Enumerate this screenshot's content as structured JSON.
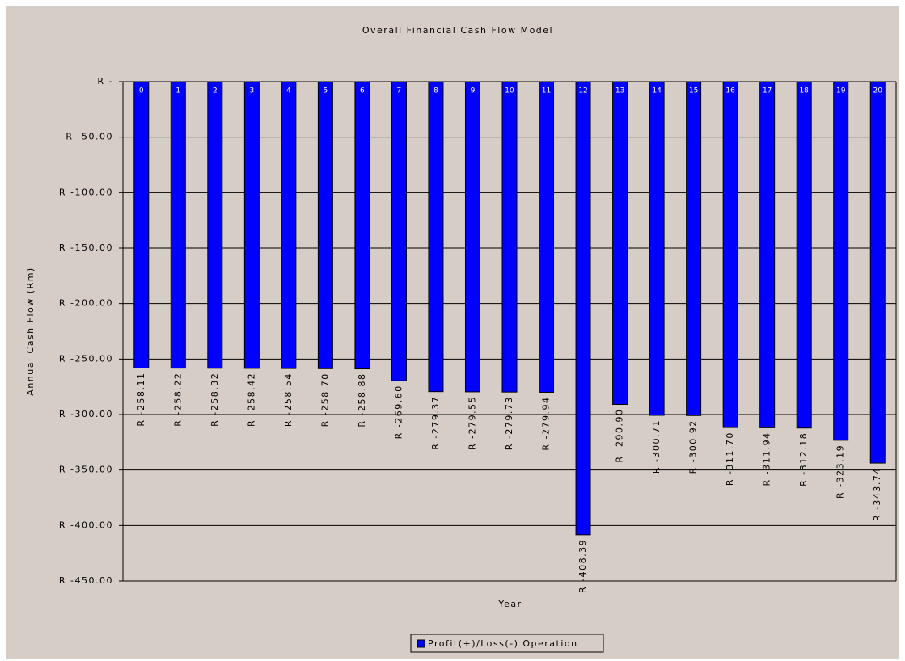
{
  "chart_data": {
    "type": "bar",
    "title": "Overall Financial Cash Flow Model",
    "x_label": "Year",
    "y_label": "Annual Cash Flow (Rm)",
    "categories": [
      "0",
      "1",
      "2",
      "3",
      "4",
      "5",
      "6",
      "7",
      "8",
      "9",
      "10",
      "11",
      "12",
      "13",
      "14",
      "15",
      "16",
      "17",
      "18",
      "19",
      "20"
    ],
    "series": [
      {
        "name": "Profit(+)/Loss(-) Operation",
        "color": "#0000ff",
        "values": [
          -258.11,
          -258.22,
          -258.32,
          -258.42,
          -258.54,
          -258.7,
          -258.88,
          -269.6,
          -279.37,
          -279.55,
          -279.73,
          -279.94,
          -408.39,
          -290.9,
          -300.71,
          -300.92,
          -311.7,
          -311.94,
          -312.18,
          -323.19,
          -343.74
        ],
        "value_labels": [
          "R -258.11",
          "R -258.22",
          "R -258.32",
          "R -258.42",
          "R -258.54",
          "R -258.70",
          "R -258.88",
          "R -269.60",
          "R -279.37",
          "R -279.55",
          "R -279.73",
          "R -279.94",
          "R -408.39",
          "R -290.90",
          "R -300.71",
          "R -300.92",
          "R -311.70",
          "R -311.94",
          "R -312.18",
          "R -323.19",
          "R -343.74"
        ]
      }
    ],
    "ylim": [
      -450,
      0
    ],
    "yticks": [
      {
        "value": 0,
        "label": "R -"
      },
      {
        "value": -50,
        "label": "R -50.00"
      },
      {
        "value": -100,
        "label": "R -100.00"
      },
      {
        "value": -150,
        "label": "R -150.00"
      },
      {
        "value": -200,
        "label": "R -200.00"
      },
      {
        "value": -250,
        "label": "R -250.00"
      },
      {
        "value": -300,
        "label": "R -300.00"
      },
      {
        "value": -350,
        "label": "R -350.00"
      },
      {
        "value": -400,
        "label": "R -400.00"
      },
      {
        "value": -450,
        "label": "R -450.00"
      }
    ],
    "grid": true,
    "legend": "bottom"
  }
}
